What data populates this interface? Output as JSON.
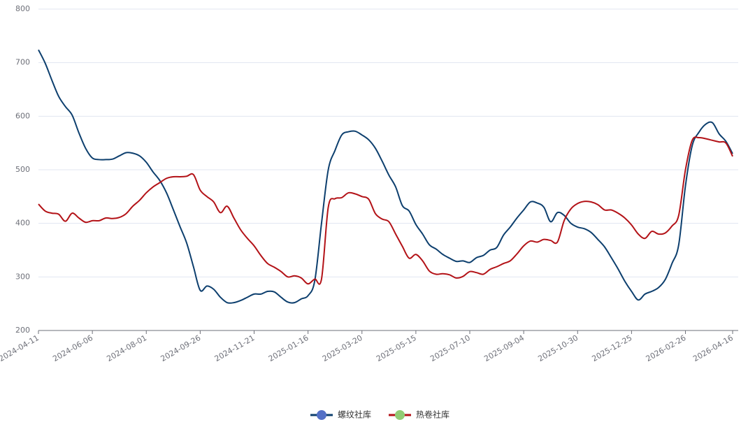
{
  "chart_data": {
    "type": "line",
    "categories": [
      "2024-04-11",
      null,
      null,
      null,
      null,
      null,
      null,
      null,
      "2024-06-06",
      null,
      null,
      null,
      null,
      null,
      null,
      null,
      "2024-08-01",
      null,
      null,
      null,
      null,
      null,
      null,
      null,
      "2024-09-26",
      null,
      null,
      null,
      null,
      null,
      null,
      null,
      "2024-11-21",
      null,
      null,
      null,
      null,
      null,
      null,
      null,
      "2025-01-16",
      null,
      null,
      null,
      null,
      null,
      null,
      null,
      "2025-03-20",
      null,
      null,
      null,
      null,
      null,
      null,
      null,
      "2025-05-15",
      null,
      null,
      null,
      null,
      null,
      null,
      null,
      "2025-07-10",
      null,
      null,
      null,
      null,
      null,
      null,
      null,
      "2025-09-04",
      null,
      null,
      null,
      null,
      null,
      null,
      null,
      "2025-10-30",
      null,
      null,
      null,
      null,
      null,
      null,
      null,
      "2025-12-25",
      null,
      null,
      null,
      null,
      null,
      null,
      null,
      "2026-02-26",
      null,
      null,
      null,
      null,
      null,
      null,
      "2026-04-16"
    ],
    "series": [
      {
        "name": "螺纹社库",
        "color": "#0d3f6e",
        "marker_color": "#5470c6",
        "values": [
          724,
          699,
          667,
          637,
          618,
          602,
          569,
          540,
          522,
          519,
          519,
          520,
          526,
          532,
          531,
          526,
          514,
          496,
          480,
          457,
          426,
          394,
          363,
          319,
          275,
          283,
          277,
          262,
          252,
          252,
          256,
          262,
          268,
          268,
          273,
          272,
          262,
          253,
          252,
          259,
          265,
          293,
          400,
          500,
          536,
          565,
          571,
          572,
          565,
          556,
          540,
          516,
          490,
          468,
          433,
          423,
          398,
          380,
          360,
          352,
          342,
          335,
          329,
          330,
          327,
          336,
          340,
          350,
          355,
          378,
          393,
          410,
          425,
          440,
          438,
          430,
          403,
          420,
          415,
          400,
          393,
          390,
          383,
          370,
          356,
          336,
          315,
          292,
          273,
          257,
          268,
          273,
          280,
          295,
          325,
          360,
          470,
          545,
          570,
          585,
          588,
          567,
          553,
          530
        ]
      },
      {
        "name": "热卷社库",
        "color": "#b31217",
        "marker_color": "#91cc75",
        "values": [
          436,
          423,
          419,
          417,
          404,
          419,
          410,
          402,
          405,
          405,
          410,
          409,
          411,
          418,
          432,
          443,
          457,
          468,
          476,
          484,
          487,
          487,
          488,
          491,
          462,
          450,
          440,
          420,
          432,
          410,
          388,
          372,
          358,
          340,
          325,
          318,
          310,
          300,
          302,
          298,
          287,
          296,
          296,
          430,
          446,
          448,
          457,
          455,
          450,
          445,
          418,
          408,
          403,
          380,
          357,
          335,
          342,
          330,
          311,
          305,
          306,
          304,
          298,
          301,
          310,
          308,
          305,
          314,
          319,
          325,
          330,
          343,
          358,
          367,
          365,
          370,
          368,
          365,
          405,
          427,
          437,
          441,
          440,
          435,
          425,
          425,
          419,
          410,
          397,
          380,
          372,
          385,
          380,
          382,
          395,
          415,
          500,
          555,
          560,
          558,
          555,
          552,
          550,
          525
        ]
      }
    ],
    "ylim": [
      200,
      800
    ],
    "yticks": [
      200,
      300,
      400,
      500,
      600,
      700,
      800
    ],
    "grid": true,
    "legend": "bottom"
  }
}
